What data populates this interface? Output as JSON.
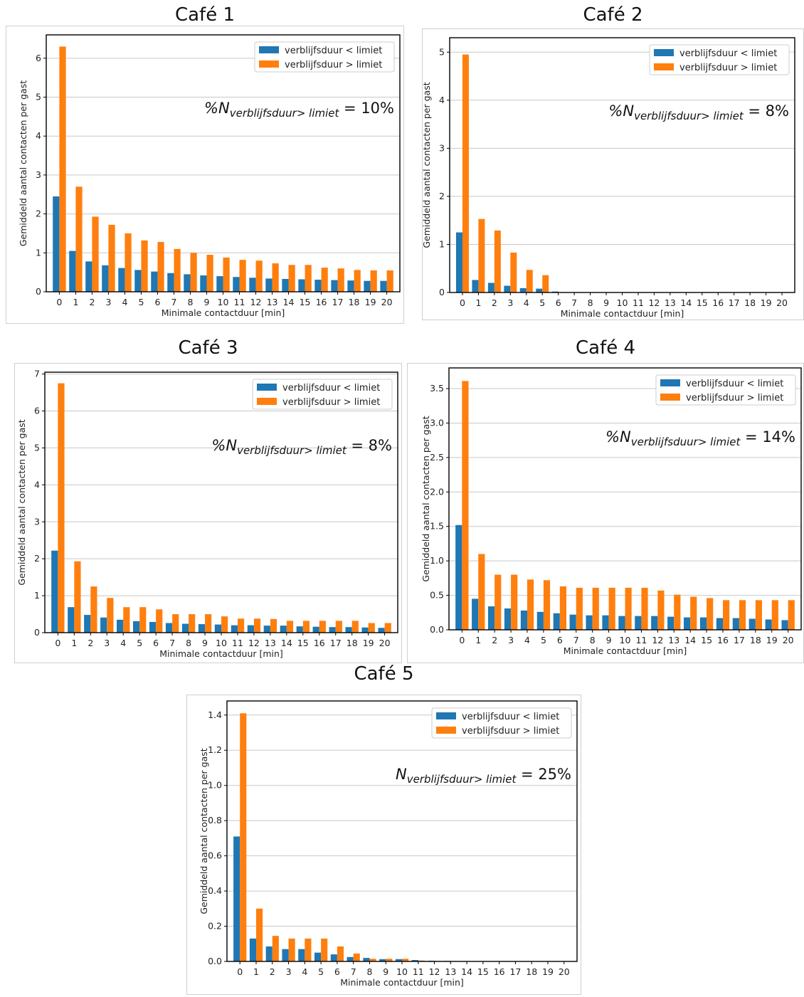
{
  "colors": {
    "below": "#1f77b4",
    "above": "#ff7f0e",
    "grid": "#c8c8c8",
    "axis": "#000000"
  },
  "chart_data": [
    {
      "type": "bar",
      "title": "Café 1",
      "xlabel": "Minimale contactduur [min]",
      "ylabel": "Gemiddeld aantal contacten per gast",
      "categories": [
        "0",
        "1",
        "2",
        "3",
        "4",
        "5",
        "6",
        "7",
        "8",
        "9",
        "10",
        "11",
        "12",
        "13",
        "14",
        "15",
        "16",
        "17",
        "18",
        "19",
        "20"
      ],
      "ylim": [
        0,
        6.6
      ],
      "yticks": [
        "0",
        "1",
        "2",
        "3",
        "4",
        "5",
        "6"
      ],
      "grid": true,
      "legend_position": "top-right",
      "annotation": {
        "pre": "%N",
        "sub": "verblijfsduur> limiet",
        "post": " = 10%"
      },
      "series": [
        {
          "name": "verblijfsduur < limiet",
          "values": [
            2.45,
            1.05,
            0.78,
            0.68,
            0.61,
            0.56,
            0.52,
            0.48,
            0.45,
            0.42,
            0.4,
            0.38,
            0.36,
            0.34,
            0.33,
            0.32,
            0.31,
            0.3,
            0.29,
            0.28,
            0.28
          ]
        },
        {
          "name": "verblijfsduur > limiet",
          "values": [
            6.3,
            2.7,
            1.93,
            1.72,
            1.5,
            1.32,
            1.28,
            1.1,
            1.0,
            0.95,
            0.88,
            0.82,
            0.8,
            0.73,
            0.69,
            0.69,
            0.62,
            0.6,
            0.56,
            0.55,
            0.55
          ]
        }
      ]
    },
    {
      "type": "bar",
      "title": "Café 2",
      "xlabel": "Minimale contactduur [min]",
      "ylabel": "Gemiddeld aantal contacten per gast",
      "categories": [
        "0",
        "1",
        "2",
        "3",
        "4",
        "5",
        "6",
        "7",
        "8",
        "9",
        "10",
        "11",
        "12",
        "13",
        "14",
        "15",
        "16",
        "17",
        "18",
        "19",
        "20"
      ],
      "ylim": [
        0,
        5.3
      ],
      "yticks": [
        "0",
        "1",
        "2",
        "3",
        "4",
        "5"
      ],
      "grid": true,
      "legend_position": "top-right",
      "annotation": {
        "pre": "%N",
        "sub": "verblijfsduur> limiet",
        "post": " = 8%"
      },
      "series": [
        {
          "name": "verblijfsduur < limiet",
          "values": [
            1.25,
            0.26,
            0.2,
            0.14,
            0.09,
            0.08,
            0.02,
            0,
            0,
            0,
            0,
            0,
            0,
            0,
            0,
            0,
            0,
            0,
            0,
            0,
            0
          ]
        },
        {
          "name": "verblijfsduur > limiet",
          "values": [
            4.95,
            1.53,
            1.29,
            0.83,
            0.47,
            0.36,
            0,
            0,
            0,
            0,
            0,
            0,
            0,
            0,
            0,
            0,
            0,
            0,
            0,
            0,
            0
          ]
        }
      ]
    },
    {
      "type": "bar",
      "title": "Café 3",
      "xlabel": "Minimale contactduur [min]",
      "ylabel": "Gemiddeld aantal contacten per gast",
      "categories": [
        "0",
        "1",
        "2",
        "3",
        "4",
        "5",
        "6",
        "7",
        "8",
        "9",
        "10",
        "11",
        "12",
        "13",
        "14",
        "15",
        "16",
        "17",
        "18",
        "19",
        "20"
      ],
      "ylim": [
        0,
        7.05
      ],
      "yticks": [
        "0",
        "1",
        "2",
        "3",
        "4",
        "5",
        "6",
        "7"
      ],
      "grid": true,
      "legend_position": "top-right",
      "annotation": {
        "pre": "%N",
        "sub": "verblijfsduur> limiet",
        "post": " = 8%"
      },
      "series": [
        {
          "name": "verblijfsduur < limiet",
          "values": [
            2.22,
            0.69,
            0.48,
            0.41,
            0.35,
            0.31,
            0.29,
            0.26,
            0.24,
            0.23,
            0.22,
            0.2,
            0.2,
            0.19,
            0.19,
            0.17,
            0.16,
            0.15,
            0.15,
            0.14,
            0.13
          ]
        },
        {
          "name": "verblijfsduur > limiet",
          "values": [
            6.75,
            1.93,
            1.25,
            0.94,
            0.69,
            0.69,
            0.63,
            0.5,
            0.5,
            0.5,
            0.44,
            0.38,
            0.38,
            0.37,
            0.32,
            0.32,
            0.32,
            0.32,
            0.32,
            0.26,
            0.26
          ]
        }
      ]
    },
    {
      "type": "bar",
      "title": "Café 4",
      "xlabel": "Minimale contactduur [min]",
      "ylabel": "Gemiddeld aantal contacten per gast",
      "categories": [
        "0",
        "1",
        "2",
        "3",
        "4",
        "5",
        "6",
        "7",
        "8",
        "9",
        "10",
        "11",
        "12",
        "13",
        "14",
        "15",
        "16",
        "17",
        "18",
        "19",
        "20"
      ],
      "ylim": [
        0,
        3.8
      ],
      "yticks": [
        "0.0",
        "0.5",
        "1.0",
        "1.5",
        "2.0",
        "2.5",
        "3.0",
        "3.5"
      ],
      "ytick_step": 0.5,
      "grid": true,
      "legend_position": "top-right",
      "annotation": {
        "pre": "%N",
        "sub": "verblijfsduur> limiet",
        "post": " = 14%"
      },
      "series": [
        {
          "name": "verblijfsduur < limiet",
          "values": [
            1.52,
            0.45,
            0.34,
            0.31,
            0.28,
            0.26,
            0.24,
            0.22,
            0.21,
            0.21,
            0.2,
            0.2,
            0.2,
            0.19,
            0.18,
            0.18,
            0.17,
            0.17,
            0.16,
            0.15,
            0.14
          ]
        },
        {
          "name": "verblijfsduur > limiet",
          "values": [
            3.61,
            1.1,
            0.8,
            0.8,
            0.73,
            0.72,
            0.63,
            0.61,
            0.61,
            0.61,
            0.61,
            0.61,
            0.57,
            0.51,
            0.48,
            0.46,
            0.43,
            0.43,
            0.43,
            0.43,
            0.43
          ]
        }
      ]
    },
    {
      "type": "bar",
      "title": "Café 5",
      "xlabel": "Minimale contactduur [min]",
      "ylabel": "Gemiddeld aantal contacten per gast",
      "categories": [
        "0",
        "1",
        "2",
        "3",
        "4",
        "5",
        "6",
        "7",
        "8",
        "9",
        "10",
        "11",
        "12",
        "13",
        "14",
        "15",
        "16",
        "17",
        "18",
        "19",
        "20"
      ],
      "ylim": [
        0,
        1.48
      ],
      "yticks": [
        "0.0",
        "0.2",
        "0.4",
        "0.6",
        "0.8",
        "1.0",
        "1.2",
        "1.4"
      ],
      "ytick_step": 0.2,
      "grid": true,
      "legend_position": "top-right",
      "annotation": {
        "pre": "N",
        "sub": "verblijfsduur> limiet",
        "post": " = 25%"
      },
      "series": [
        {
          "name": "verblijfsduur < limiet",
          "values": [
            0.71,
            0.13,
            0.085,
            0.07,
            0.07,
            0.05,
            0.04,
            0.025,
            0.02,
            0.013,
            0.013,
            0.008,
            0.004,
            0.003,
            0.002,
            0.001,
            0,
            0,
            0,
            0,
            0
          ]
        },
        {
          "name": "verblijfsduur > limiet",
          "values": [
            1.41,
            0.3,
            0.145,
            0.13,
            0.13,
            0.13,
            0.085,
            0.045,
            0.015,
            0.015,
            0.015,
            0.005,
            0.003,
            0.002,
            0.002,
            0.001,
            0,
            0,
            0,
            0,
            0
          ]
        }
      ]
    }
  ]
}
